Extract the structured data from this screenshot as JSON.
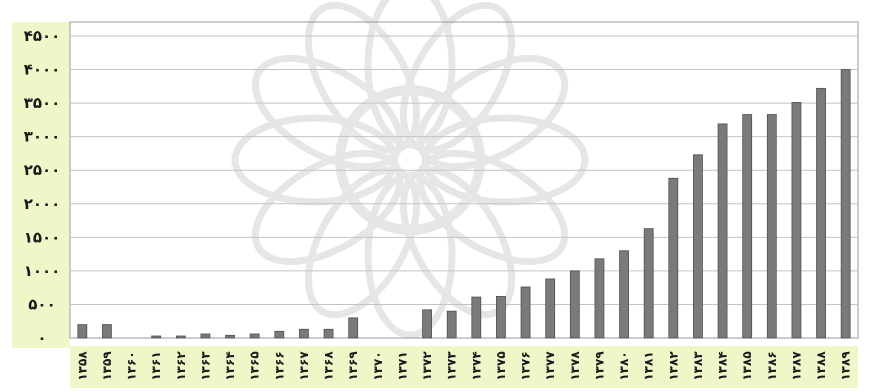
{
  "chart_data": {
    "type": "bar",
    "title": "",
    "xlabel": "",
    "ylabel": "",
    "ylim": [
      0,
      4500
    ],
    "yticks": [
      0,
      500,
      1000,
      1500,
      2000,
      2500,
      3000,
      3500,
      4000,
      4500
    ],
    "ytick_labels": [
      "۰",
      "۵۰۰",
      "۱۰۰۰",
      "۱۵۰۰",
      "۲۰۰۰",
      "۲۵۰۰",
      "۳۰۰۰",
      "۳۵۰۰",
      "۴۰۰۰",
      "۴۵۰۰"
    ],
    "grid": true,
    "legend": "none",
    "categories": [
      "۱۳۵۸",
      "۱۳۵۹",
      "۱۳۶۰",
      "۱۳۶۱",
      "۱۳۶۲",
      "۱۳۶۳",
      "۱۳۶۴",
      "۱۳۶۵",
      "۱۳۶۶",
      "۱۳۶۷",
      "۱۳۶۸",
      "۱۳۶۹",
      "۱۳۷۰",
      "۱۳۷۱",
      "۱۳۷۲",
      "۱۳۷۳",
      "۱۳۷۴",
      "۱۳۷۵",
      "۱۳۷۶",
      "۱۳۷۷",
      "۱۳۷۸",
      "۱۳۷۹",
      "۱۳۸۰",
      "۱۳۸۱",
      "۱۳۸۲",
      "۱۳۸۳",
      "۱۳۸۴",
      "۱۳۸۵",
      "۱۳۸۶",
      "۱۳۸۷",
      "۱۳۸۸",
      "۱۳۸۹"
    ],
    "values": [
      200,
      200,
      0,
      30,
      30,
      60,
      40,
      60,
      100,
      130,
      130,
      300,
      0,
      0,
      420,
      400,
      610,
      620,
      760,
      880,
      1000,
      1180,
      1300,
      1630,
      2380,
      2730,
      3190,
      3330,
      3330,
      3510,
      3720,
      4000
    ],
    "colors": {
      "bar_fill": "#7a7a7a",
      "bar_edge": "#4f4f4f",
      "axis_band": "#eef7c8",
      "grid": "#c4c4c4",
      "frame": "#9a9a9a"
    }
  }
}
